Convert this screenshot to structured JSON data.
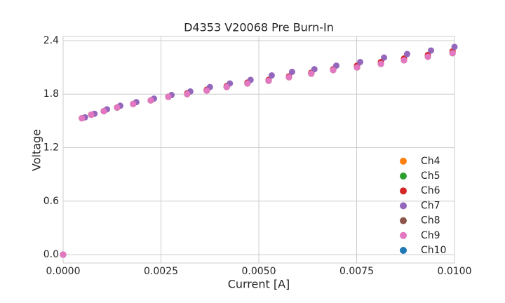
{
  "chart_data": {
    "type": "scatter",
    "title": "D4353 V20068 Pre Burn-In",
    "xlabel": "Current [A]",
    "ylabel": "Voltage",
    "xlim": [
      0,
      0.01
    ],
    "ylim": [
      -0.094,
      2.447
    ],
    "xticks": [
      {
        "value": 0,
        "label": "0.0000"
      },
      {
        "value": 0.0025,
        "label": "0.0025"
      },
      {
        "value": 0.005,
        "label": "0.0050"
      },
      {
        "value": 0.0075,
        "label": "0.0075"
      },
      {
        "value": 0.01,
        "label": "0.0100"
      }
    ],
    "yticks": [
      {
        "value": 0,
        "label": "0.0"
      },
      0.6,
      1.2,
      1.8,
      2.4
    ],
    "grid": true,
    "legend": "lower right",
    "series": [
      {
        "name": "Ch4",
        "color": "#ff7f0e",
        "x": [
          0,
          0.00048,
          0.00072,
          0.00104,
          0.00138,
          0.00179,
          0.00224,
          0.00269,
          0.00317,
          0.00367,
          0.00418,
          0.00471,
          0.00525,
          0.00577,
          0.00634,
          0.0069,
          0.00751,
          0.00812,
          0.00871,
          0.00932,
          0.00995
        ],
        "values": [
          0,
          1.53,
          1.57,
          1.61,
          1.65,
          1.69,
          1.73,
          1.77,
          1.8,
          1.84,
          1.88,
          1.92,
          1.95,
          1.99,
          2.03,
          2.07,
          2.1,
          2.14,
          2.18,
          2.22,
          2.26
        ]
      },
      {
        "name": "Ch5",
        "color": "#2ca02c",
        "x": [
          0,
          0.00048,
          0.00072,
          0.00104,
          0.00138,
          0.00179,
          0.00224,
          0.00269,
          0.00317,
          0.00367,
          0.00418,
          0.00471,
          0.00525,
          0.00577,
          0.00634,
          0.0069,
          0.00751,
          0.00812,
          0.00871,
          0.00932,
          0.00995
        ],
        "values": [
          0,
          1.53,
          1.57,
          1.61,
          1.65,
          1.69,
          1.73,
          1.77,
          1.8,
          1.84,
          1.88,
          1.92,
          1.95,
          1.99,
          2.03,
          2.07,
          2.1,
          2.14,
          2.18,
          2.22,
          2.26
        ]
      },
      {
        "name": "Ch6",
        "color": "#d62728",
        "x": [
          0,
          0.00048,
          0.00072,
          0.00104,
          0.00138,
          0.00179,
          0.00224,
          0.00269,
          0.00317,
          0.00367,
          0.00418,
          0.00471,
          0.00525,
          0.00577,
          0.00634,
          0.0069,
          0.00751,
          0.00812,
          0.00871,
          0.00932,
          0.00995
        ],
        "values": [
          0,
          1.53,
          1.57,
          1.61,
          1.65,
          1.69,
          1.73,
          1.77,
          1.81,
          1.85,
          1.89,
          1.93,
          1.96,
          2.0,
          2.04,
          2.08,
          2.12,
          2.16,
          2.2,
          2.24,
          2.28
        ]
      },
      {
        "name": "Ch7",
        "color": "#9467bd",
        "x": [
          0,
          0.00056,
          0.0008,
          0.00112,
          0.00146,
          0.00187,
          0.00232,
          0.00277,
          0.00325,
          0.00375,
          0.00426,
          0.00479,
          0.00533,
          0.00585,
          0.00642,
          0.00698,
          0.00759,
          0.0082,
          0.00879,
          0.0094,
          0.01
        ],
        "values": [
          0,
          1.54,
          1.58,
          1.63,
          1.67,
          1.71,
          1.75,
          1.79,
          1.83,
          1.88,
          1.92,
          1.96,
          2.01,
          2.05,
          2.08,
          2.12,
          2.16,
          2.21,
          2.25,
          2.29,
          2.33
        ]
      },
      {
        "name": "Ch8",
        "color": "#8c564b",
        "x": [
          0,
          0.00048,
          0.00072,
          0.00104,
          0.00138,
          0.00179,
          0.00224,
          0.00269,
          0.00317,
          0.00367,
          0.00418,
          0.00471,
          0.00525,
          0.00577,
          0.00634,
          0.0069,
          0.00751,
          0.00812,
          0.00871,
          0.00932,
          0.00995
        ],
        "values": [
          0,
          1.53,
          1.57,
          1.61,
          1.65,
          1.69,
          1.73,
          1.77,
          1.8,
          1.84,
          1.88,
          1.92,
          1.95,
          1.99,
          2.03,
          2.07,
          2.1,
          2.14,
          2.18,
          2.22,
          2.26
        ]
      },
      {
        "name": "Ch9",
        "color": "#e377c2",
        "x": [
          0,
          0.00048,
          0.00072,
          0.00104,
          0.00138,
          0.00179,
          0.00224,
          0.00269,
          0.00317,
          0.00367,
          0.00418,
          0.00471,
          0.00525,
          0.00577,
          0.00634,
          0.0069,
          0.00751,
          0.00812,
          0.00871,
          0.00932,
          0.00995
        ],
        "values": [
          0,
          1.53,
          1.57,
          1.61,
          1.65,
          1.69,
          1.73,
          1.77,
          1.8,
          1.84,
          1.88,
          1.92,
          1.95,
          1.99,
          2.03,
          2.07,
          2.1,
          2.14,
          2.18,
          2.22,
          2.26
        ]
      },
      {
        "name": "Ch10",
        "color": "#1f77b4",
        "x": [],
        "values": []
      }
    ]
  }
}
